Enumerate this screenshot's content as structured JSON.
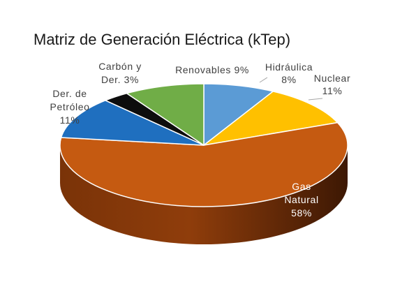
{
  "chart_data": {
    "type": "pie",
    "title": "Matriz de Generación Eléctrica (kTep)",
    "slices": [
      {
        "name": "Hidráulica",
        "value": 8,
        "color": "#5B9BD5",
        "label_lines": [
          "Hidráulica",
          "8%"
        ],
        "label_color": "#404040"
      },
      {
        "name": "Nuclear",
        "value": 11,
        "color": "#FFC000",
        "label_lines": [
          "Nuclear",
          "11%"
        ],
        "label_color": "#404040"
      },
      {
        "name": "Gas Natural",
        "value": 58,
        "color": "#C55A11",
        "label_lines": [
          "Gas",
          "Natural",
          "58%"
        ],
        "label_color": "#ffffff"
      },
      {
        "name": "Der. de Petróleo",
        "value": 11,
        "color": "#1F6FBF",
        "label_lines": [
          "Der. de",
          "Petróleo",
          "11%"
        ],
        "label_color": "#404040"
      },
      {
        "name": "Carbón y Der.",
        "value": 3,
        "color": "#0d0d0d",
        "label_lines": [
          "Carbón y",
          "Der. 3%"
        ],
        "label_color": "#404040"
      },
      {
        "name": "Renovables",
        "value": 9,
        "color": "#70AD47",
        "label_lines": [
          "Renovables 9%"
        ],
        "label_color": "#404040"
      }
    ]
  }
}
